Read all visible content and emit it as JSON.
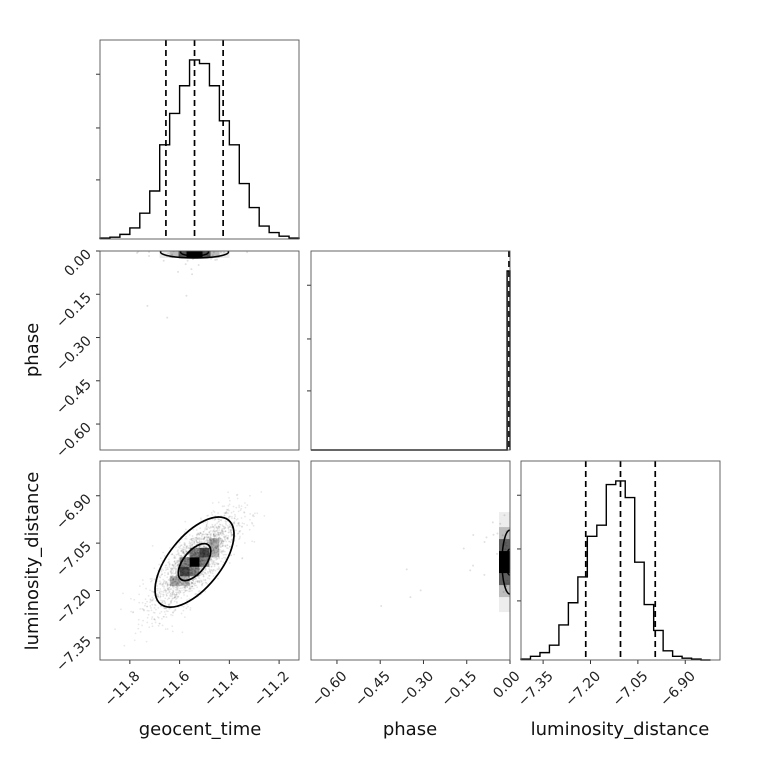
{
  "chart_data": {
    "type": "corner",
    "parameters": [
      "geocent_time",
      "phase",
      "luminosity_distance"
    ],
    "grid": true,
    "ranges": {
      "geocent_time": [
        -11.92,
        -11.12
      ],
      "phase": [
        -0.69,
        0.0
      ],
      "luminosity_distance": [
        -7.42,
        -6.79
      ]
    },
    "ticks": {
      "geocent_time": [
        -11.8,
        -11.6,
        -11.4,
        -11.2
      ],
      "phase": [
        -0.6,
        -0.45,
        -0.3,
        -0.15,
        0.0
      ],
      "luminosity_distance": [
        -7.35,
        -7.2,
        -7.05,
        -6.9
      ]
    },
    "tick_labels": {
      "geocent_time": [
        "−11.8",
        "−11.6",
        "−11.4",
        "−11.2"
      ],
      "phase": [
        "−0.60",
        "−0.45",
        "−0.30",
        "−0.15",
        "0.00"
      ],
      "luminosity_distance": [
        "−7.35",
        "−7.20",
        "−7.05",
        "−6.90"
      ]
    },
    "marginals": {
      "geocent_time": {
        "bins": [
          -11.92,
          -11.88,
          -11.84,
          -11.8,
          -11.76,
          -11.72,
          -11.68,
          -11.64,
          -11.6,
          -11.56,
          -11.52,
          -11.48,
          -11.44,
          -11.4,
          -11.36,
          -11.32,
          -11.28,
          -11.24,
          -11.2,
          -11.16,
          -11.12
        ],
        "counts": [
          0.005,
          0.01,
          0.025,
          0.06,
          0.14,
          0.26,
          0.51,
          0.68,
          0.83,
          0.97,
          0.95,
          0.83,
          0.64,
          0.51,
          0.3,
          0.17,
          0.07,
          0.035,
          0.015,
          0.005
        ],
        "quantiles": [
          -11.655,
          -11.54,
          -11.425
        ]
      },
      "phase": {
        "bins": [
          -0.69,
          -0.65,
          -0.61,
          -0.57,
          -0.53,
          -0.49,
          -0.45,
          -0.41,
          -0.37,
          -0.33,
          -0.29,
          -0.25,
          -0.21,
          -0.17,
          -0.13,
          -0.09,
          -0.05,
          -0.01,
          0.0
        ],
        "counts": [
          0,
          0,
          0,
          0,
          0,
          0,
          0,
          0,
          0,
          0,
          0,
          0,
          0,
          0,
          0,
          0,
          0,
          1.0
        ],
        "quantiles": [
          0.0
        ]
      },
      "luminosity_distance": {
        "bins": [
          -7.42,
          -7.39,
          -7.36,
          -7.33,
          -7.3,
          -7.27,
          -7.24,
          -7.21,
          -7.18,
          -7.15,
          -7.12,
          -7.09,
          -7.06,
          -7.03,
          -7.0,
          -6.97,
          -6.94,
          -6.91,
          -6.88,
          -6.85,
          -6.82
        ],
        "counts": [
          0.005,
          0.02,
          0.04,
          0.08,
          0.19,
          0.31,
          0.45,
          0.67,
          0.73,
          0.95,
          0.97,
          0.88,
          0.53,
          0.3,
          0.16,
          0.05,
          0.02,
          0.01,
          0.005,
          0.0
        ],
        "quantiles": [
          -7.215,
          -7.105,
          -6.995
        ]
      }
    },
    "joint": {
      "geocent_time_vs_luminosity_distance": {
        "center": [
          -11.54,
          -7.11
        ],
        "correlation": 0.78,
        "contours_sigma": [
          1,
          2
        ]
      },
      "geocent_time_vs_phase": {
        "center": [
          -11.54,
          0.0
        ]
      },
      "phase_vs_luminosity_distance": {
        "center": [
          0.0,
          -7.11
        ]
      }
    }
  }
}
